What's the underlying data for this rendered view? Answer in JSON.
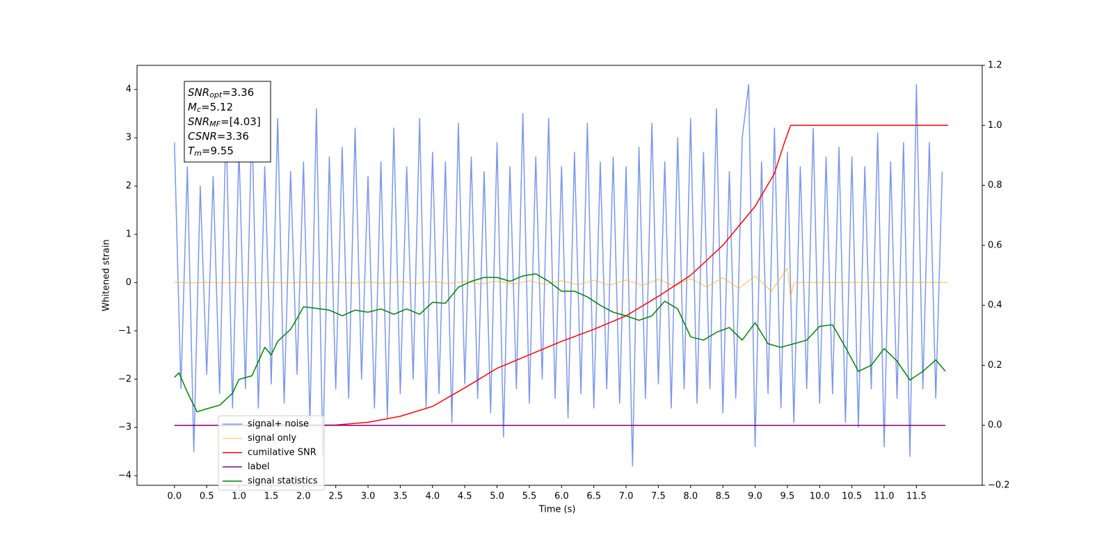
{
  "chart_data": {
    "type": "line",
    "xlabel": "Time (s)",
    "ylabel": "Whitened strain",
    "xlim": [
      -0.58,
      12.52
    ],
    "ylim": [
      -4.2,
      4.5
    ],
    "y2lim": [
      -0.2,
      1.2
    ],
    "xticks": [
      {
        "value": 0,
        "label": "0.0"
      },
      0.5,
      {
        "value": 1,
        "label": "1.0"
      },
      1.5,
      {
        "value": 2,
        "label": "2.0"
      },
      2.5,
      {
        "value": 3,
        "label": "3.0"
      },
      3.5,
      {
        "value": 4,
        "label": "4.0"
      },
      4.5,
      {
        "value": 5,
        "label": "5.0"
      },
      5.5,
      {
        "value": 6,
        "label": "6.0"
      },
      6.5,
      {
        "value": 7,
        "label": "7.0"
      },
      7.5,
      {
        "value": 8,
        "label": "8.0"
      },
      8.5,
      {
        "value": 9,
        "label": "9.0"
      },
      9.5,
      {
        "value": 10,
        "label": "10.0"
      },
      10.5,
      {
        "value": 11,
        "label": "11.0"
      },
      11.5
    ],
    "yticks": [
      {
        "value": -4,
        "label": "−4"
      },
      {
        "value": -3,
        "label": "−3"
      },
      {
        "value": -2,
        "label": "−2"
      },
      {
        "value": -1,
        "label": "−1"
      },
      0,
      1,
      2,
      3,
      4
    ],
    "y2ticks": [
      {
        "value": -0.2,
        "label": "−0.2"
      },
      {
        "value": 0,
        "label": "0.0"
      },
      0.2,
      0.4,
      0.6,
      0.8,
      {
        "value": 1,
        "label": "1.0"
      },
      1.2
    ],
    "grid": false,
    "legend": "lower left",
    "annotation_box": [
      {
        "symbol": "SNR",
        "subscript": "opt",
        "text": "=3.36"
      },
      {
        "symbol": "M",
        "subscript": "c",
        "text": "=5.12"
      },
      {
        "symbol": "SNR",
        "subscript": "MF",
        "text": "=[4.03]"
      },
      {
        "symbol": "CSNR",
        "subscript": "",
        "text": "=3.36"
      },
      {
        "symbol": "T",
        "subscript": "m",
        "text": "=9.55"
      }
    ],
    "series": [
      {
        "name": "signal+ noise",
        "color": "#4169e1",
        "alpha": 0.7,
        "axis": "y",
        "x": [
          0.0,
          0.1,
          0.2,
          0.3,
          0.4,
          0.5,
          0.6,
          0.7,
          0.8,
          0.9,
          1.0,
          1.1,
          1.2,
          1.3,
          1.4,
          1.5,
          1.6,
          1.7,
          1.8,
          1.9,
          2.0,
          2.1,
          2.2,
          2.3,
          2.4,
          2.5,
          2.6,
          2.7,
          2.8,
          2.9,
          3.0,
          3.1,
          3.2,
          3.3,
          3.4,
          3.5,
          3.6,
          3.7,
          3.8,
          3.9,
          4.0,
          4.1,
          4.2,
          4.3,
          4.4,
          4.5,
          4.6,
          4.7,
          4.8,
          4.9,
          5.0,
          5.1,
          5.2,
          5.3,
          5.4,
          5.5,
          5.6,
          5.7,
          5.8,
          5.9,
          6.0,
          6.1,
          6.2,
          6.3,
          6.4,
          6.5,
          6.6,
          6.7,
          6.8,
          6.9,
          7.0,
          7.1,
          7.2,
          7.3,
          7.4,
          7.5,
          7.6,
          7.7,
          7.8,
          7.9,
          8.0,
          8.1,
          8.2,
          8.3,
          8.4,
          8.5,
          8.6,
          8.7,
          8.8,
          8.9,
          9.0,
          9.1,
          9.2,
          9.3,
          9.4,
          9.5,
          9.6,
          9.7,
          9.8,
          9.9,
          10.0,
          10.1,
          10.2,
          10.3,
          10.4,
          10.5,
          10.6,
          10.7,
          10.8,
          10.9,
          11.0,
          11.1,
          11.2,
          11.3,
          11.4,
          11.5,
          11.6,
          11.7,
          11.8,
          11.9
        ],
        "values": [
          2.9,
          -2.2,
          2.4,
          -3.5,
          2.0,
          -1.9,
          2.2,
          -2.3,
          3.3,
          -2.6,
          2.8,
          -2.2,
          3.4,
          -2.6,
          2.4,
          -2.1,
          3.4,
          -2.5,
          2.3,
          -1.9,
          2.5,
          -2.9,
          3.6,
          -3.6,
          2.6,
          -2.2,
          2.8,
          -2.4,
          3.2,
          -2.0,
          2.2,
          -2.6,
          2.5,
          -2.8,
          3.2,
          -2.3,
          2.4,
          -2.0,
          3.4,
          -2.6,
          2.7,
          -2.3,
          2.5,
          -2.9,
          3.3,
          -2.1,
          2.6,
          -2.4,
          2.3,
          -2.7,
          2.9,
          -3.2,
          2.4,
          -2.2,
          3.5,
          -2.5,
          2.6,
          -2.0,
          3.4,
          -2.4,
          2.4,
          -2.8,
          2.7,
          -2.3,
          3.3,
          -2.6,
          2.5,
          -2.2,
          2.6,
          -2.5,
          2.4,
          -3.8,
          2.8,
          -2.4,
          3.3,
          -2.1,
          2.5,
          -2.6,
          3.0,
          -2.2,
          3.4,
          -2.5,
          2.7,
          -2.2,
          3.6,
          -2.7,
          2.3,
          -2.4,
          3.0,
          4.1,
          -3.4,
          2.5,
          -2.3,
          3.2,
          -2.6,
          2.7,
          -2.9,
          2.4,
          -2.2,
          3.2,
          -2.5,
          2.6,
          -2.3,
          2.8,
          -2.9,
          2.6,
          -3.0,
          2.4,
          -2.2,
          3.1,
          -3.4,
          2.5,
          -2.4,
          2.9,
          -3.6,
          4.1,
          -2.2,
          2.9,
          -2.4,
          2.3
        ]
      },
      {
        "name": "signal only",
        "color": "#ffa500",
        "alpha": 0.5,
        "axis": "y",
        "x": [
          0,
          0.25,
          0.5,
          0.75,
          1.0,
          1.25,
          1.5,
          1.75,
          2.0,
          2.25,
          2.5,
          2.75,
          3.0,
          3.25,
          3.5,
          3.75,
          4.0,
          4.25,
          4.5,
          4.75,
          5.0,
          5.25,
          5.5,
          5.75,
          6.0,
          6.25,
          6.5,
          6.75,
          7.0,
          7.25,
          7.5,
          7.75,
          8.0,
          8.25,
          8.5,
          8.75,
          9.0,
          9.25,
          9.5,
          9.55,
          9.6,
          11.99
        ],
        "values": [
          0.005,
          -0.005,
          0.005,
          -0.005,
          0.005,
          -0.005,
          0.006,
          -0.006,
          0.007,
          -0.008,
          0.01,
          -0.011,
          0.012,
          -0.014,
          0.016,
          -0.018,
          0.02,
          -0.022,
          0.025,
          -0.028,
          0.03,
          -0.032,
          0.035,
          -0.038,
          0.04,
          -0.044,
          0.048,
          -0.052,
          0.055,
          -0.06,
          0.066,
          -0.072,
          0.08,
          -0.09,
          0.1,
          -0.12,
          0.14,
          -0.18,
          0.3,
          -0.3,
          0,
          0
        ]
      },
      {
        "name": "cumilative SNR",
        "color": "#ff0000",
        "alpha": 1,
        "axis": "y2",
        "x": [
          0,
          2.5,
          3.0,
          3.5,
          4.0,
          4.5,
          5.0,
          5.5,
          6.0,
          6.5,
          7.0,
          7.5,
          8.0,
          8.5,
          9.0,
          9.3,
          9.45,
          9.55,
          11.99
        ],
        "values": [
          0,
          0.001,
          0.01,
          0.03,
          0.063,
          0.125,
          0.19,
          0.235,
          0.28,
          0.32,
          0.365,
          0.43,
          0.5,
          0.6,
          0.73,
          0.84,
          0.94,
          1.0,
          1.0
        ]
      },
      {
        "name": "label",
        "color": "#800080",
        "alpha": 1,
        "axis": "y2",
        "x": [
          0,
          11.95
        ],
        "values": [
          0,
          0
        ]
      },
      {
        "name": "signal statistics",
        "color": "#008000",
        "alpha": 1,
        "axis": "y2",
        "x": [
          0,
          0.07,
          0.2,
          0.35,
          0.5,
          0.7,
          0.9,
          1.0,
          1.2,
          1.4,
          1.5,
          1.6,
          1.8,
          1.9,
          2.0,
          2.2,
          2.4,
          2.6,
          2.8,
          3.0,
          3.2,
          3.4,
          3.6,
          3.8,
          4.0,
          4.2,
          4.4,
          4.6,
          4.8,
          5.0,
          5.2,
          5.4,
          5.6,
          5.8,
          6.0,
          6.2,
          6.4,
          6.6,
          6.8,
          7.0,
          7.2,
          7.4,
          7.6,
          7.8,
          8.0,
          8.2,
          8.4,
          8.6,
          8.8,
          9.0,
          9.2,
          9.4,
          9.6,
          9.8,
          10.0,
          10.2,
          10.4,
          10.6,
          10.8,
          11.0,
          11.2,
          11.4,
          11.6,
          11.8,
          11.95
        ],
        "values": [
          0.16,
          0.175,
          0.11,
          0.045,
          0.055,
          0.067,
          0.107,
          0.153,
          0.165,
          0.26,
          0.235,
          0.28,
          0.32,
          0.356,
          0.395,
          0.39,
          0.384,
          0.365,
          0.384,
          0.377,
          0.388,
          0.37,
          0.388,
          0.37,
          0.41,
          0.407,
          0.46,
          0.48,
          0.493,
          0.493,
          0.48,
          0.498,
          0.505,
          0.48,
          0.447,
          0.447,
          0.428,
          0.4,
          0.377,
          0.365,
          0.35,
          0.365,
          0.414,
          0.388,
          0.295,
          0.284,
          0.31,
          0.326,
          0.284,
          0.342,
          0.272,
          0.26,
          0.272,
          0.284,
          0.33,
          0.335,
          0.26,
          0.18,
          0.2,
          0.256,
          0.214,
          0.151,
          0.18,
          0.218,
          0.18
        ]
      }
    ]
  }
}
